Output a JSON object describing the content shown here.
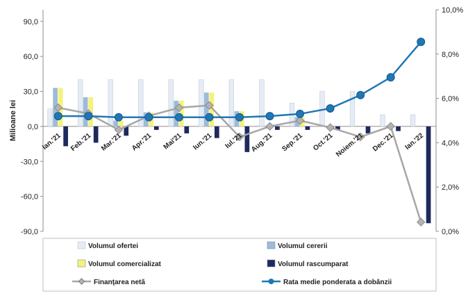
{
  "chart_data": {
    "type": "bar",
    "categories": [
      "Ian.'21",
      "Feb.'21",
      "Mar.'21",
      "Apr.'21",
      "Mai'21",
      "Iun.'21",
      "Iul.'21",
      "Aug.'21",
      "Sep.'21",
      "Oct.'21",
      "Noiem.'21",
      "Dec.'21",
      "Ian.'22"
    ],
    "ylabel": "Milioane lei",
    "ylim": [
      -90,
      100
    ],
    "yticks": [
      "90,0",
      "60,0",
      "30,0",
      "0,0",
      "-30,0",
      "-60,0",
      "-90,0"
    ],
    "y2lim": [
      0,
      10
    ],
    "y2ticks": [
      "10,0%",
      "8,0%",
      "6,0%",
      "4,0%",
      "2,0%",
      "0,0%"
    ],
    "legend_position": "bottom",
    "series": [
      {
        "name": "Volumul ofertei",
        "kind": "bar",
        "axis": "left",
        "color": "#e6ecf4",
        "values": [
          15,
          40,
          40,
          40,
          40,
          40,
          40,
          40,
          20,
          30,
          30,
          10,
          10
        ]
      },
      {
        "name": "Volumul cererii",
        "kind": "bar",
        "axis": "left",
        "color": "#9dbbd9",
        "values": [
          33,
          25,
          5,
          12,
          22,
          29,
          13,
          0,
          8,
          0,
          0,
          0,
          0
        ]
      },
      {
        "name": "Volumul comercializat",
        "kind": "bar",
        "axis": "left",
        "color": "#f5f27a",
        "values": [
          33,
          25,
          5,
          12,
          22,
          29,
          13,
          0,
          8,
          0,
          0,
          0,
          0
        ]
      },
      {
        "name": "Volumul rascumparat",
        "kind": "bar",
        "axis": "left",
        "color": "#1e2a5e",
        "values": [
          -17,
          -14,
          -8,
          -3,
          -6,
          -10,
          -22,
          -3,
          -3,
          -3,
          -6,
          -4,
          -83
        ]
      },
      {
        "name": "Finanţarea netă",
        "kind": "line",
        "axis": "left",
        "color": "#a6a6a6",
        "values": [
          16,
          11,
          -3,
          9,
          16,
          18,
          -9,
          0,
          5,
          -1,
          -9,
          0,
          -82
        ]
      },
      {
        "name": "Rata medie ponderata a dobânzii",
        "kind": "line",
        "axis": "right",
        "color": "#1f77b4",
        "values": [
          5.2,
          5.2,
          5.15,
          5.15,
          5.15,
          5.15,
          5.15,
          5.2,
          5.3,
          5.55,
          6.15,
          6.95,
          8.55
        ]
      }
    ]
  }
}
